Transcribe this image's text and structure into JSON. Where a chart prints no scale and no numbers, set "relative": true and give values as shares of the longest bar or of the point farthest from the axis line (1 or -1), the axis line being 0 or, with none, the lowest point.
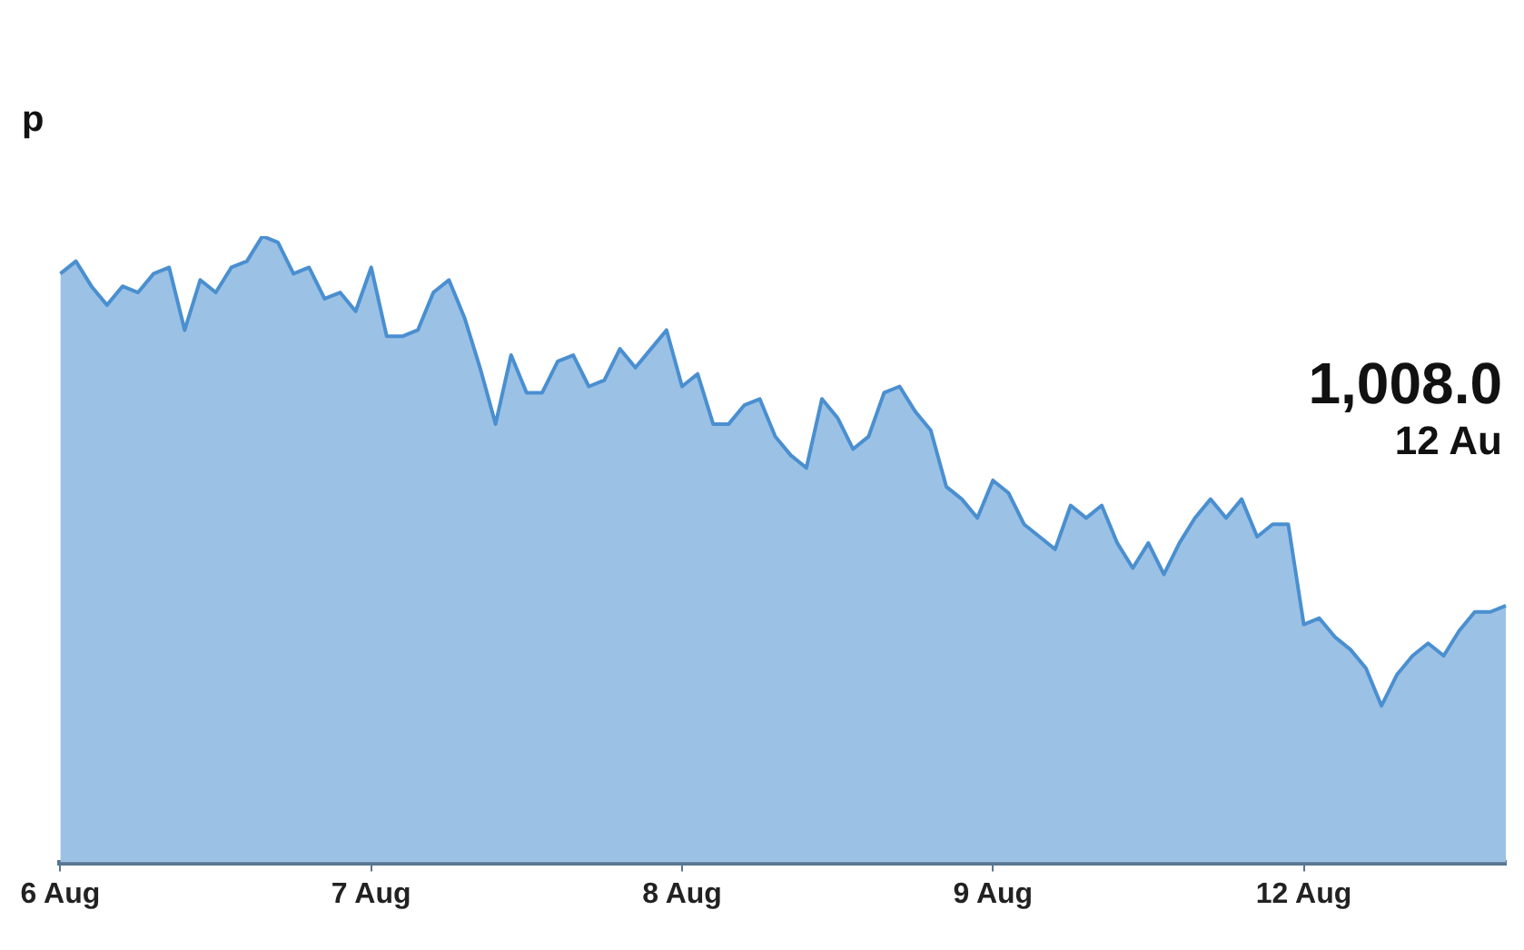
{
  "chart_data": {
    "type": "area",
    "subtitle": "p",
    "relative": true,
    "grid": false,
    "legend": false,
    "categories": [
      "6 Aug",
      null,
      null,
      null,
      null,
      null,
      null,
      null,
      null,
      null,
      null,
      null,
      null,
      null,
      null,
      null,
      null,
      null,
      null,
      null,
      "7 Aug",
      null,
      null,
      null,
      null,
      null,
      null,
      null,
      null,
      null,
      null,
      null,
      null,
      null,
      null,
      null,
      null,
      null,
      null,
      null,
      "8 Aug",
      null,
      null,
      null,
      null,
      null,
      null,
      null,
      null,
      null,
      null,
      null,
      null,
      null,
      null,
      null,
      null,
      null,
      null,
      null,
      "9 Aug",
      null,
      null,
      null,
      null,
      null,
      null,
      null,
      null,
      null,
      null,
      null,
      null,
      null,
      null,
      null,
      null,
      null,
      null,
      null,
      "12 Aug",
      null,
      null,
      null,
      null,
      null,
      null,
      null,
      null,
      null,
      null,
      null,
      null,
      null
    ],
    "series": [
      {
        "color": "#4a8fd0",
        "values": [
          0.94,
          0.96,
          0.92,
          0.89,
          0.92,
          0.91,
          0.94,
          0.95,
          0.85,
          0.93,
          0.91,
          0.95,
          0.96,
          1.0,
          0.99,
          0.94,
          0.95,
          0.9,
          0.91,
          0.88,
          0.95,
          0.84,
          0.84,
          0.85,
          0.91,
          0.93,
          0.87,
          0.79,
          0.7,
          0.81,
          0.75,
          0.75,
          0.8,
          0.81,
          0.76,
          0.77,
          0.82,
          0.79,
          0.82,
          0.85,
          0.76,
          0.78,
          0.7,
          0.7,
          0.73,
          0.74,
          0.68,
          0.65,
          0.63,
          0.74,
          0.71,
          0.66,
          0.68,
          0.75,
          0.76,
          0.72,
          0.69,
          0.6,
          0.58,
          0.55,
          0.61,
          0.59,
          0.54,
          0.52,
          0.5,
          0.57,
          0.55,
          0.57,
          0.51,
          0.47,
          0.51,
          0.46,
          0.51,
          0.55,
          0.58,
          0.55,
          0.58,
          0.52,
          0.54,
          0.54,
          0.38,
          0.39,
          0.36,
          0.34,
          0.31,
          0.25,
          0.3,
          0.33,
          0.35,
          0.33,
          0.37,
          0.4,
          0.4,
          0.41
        ]
      }
    ],
    "annotations": [
      "1,008.0",
      "12 Au"
    ]
  }
}
